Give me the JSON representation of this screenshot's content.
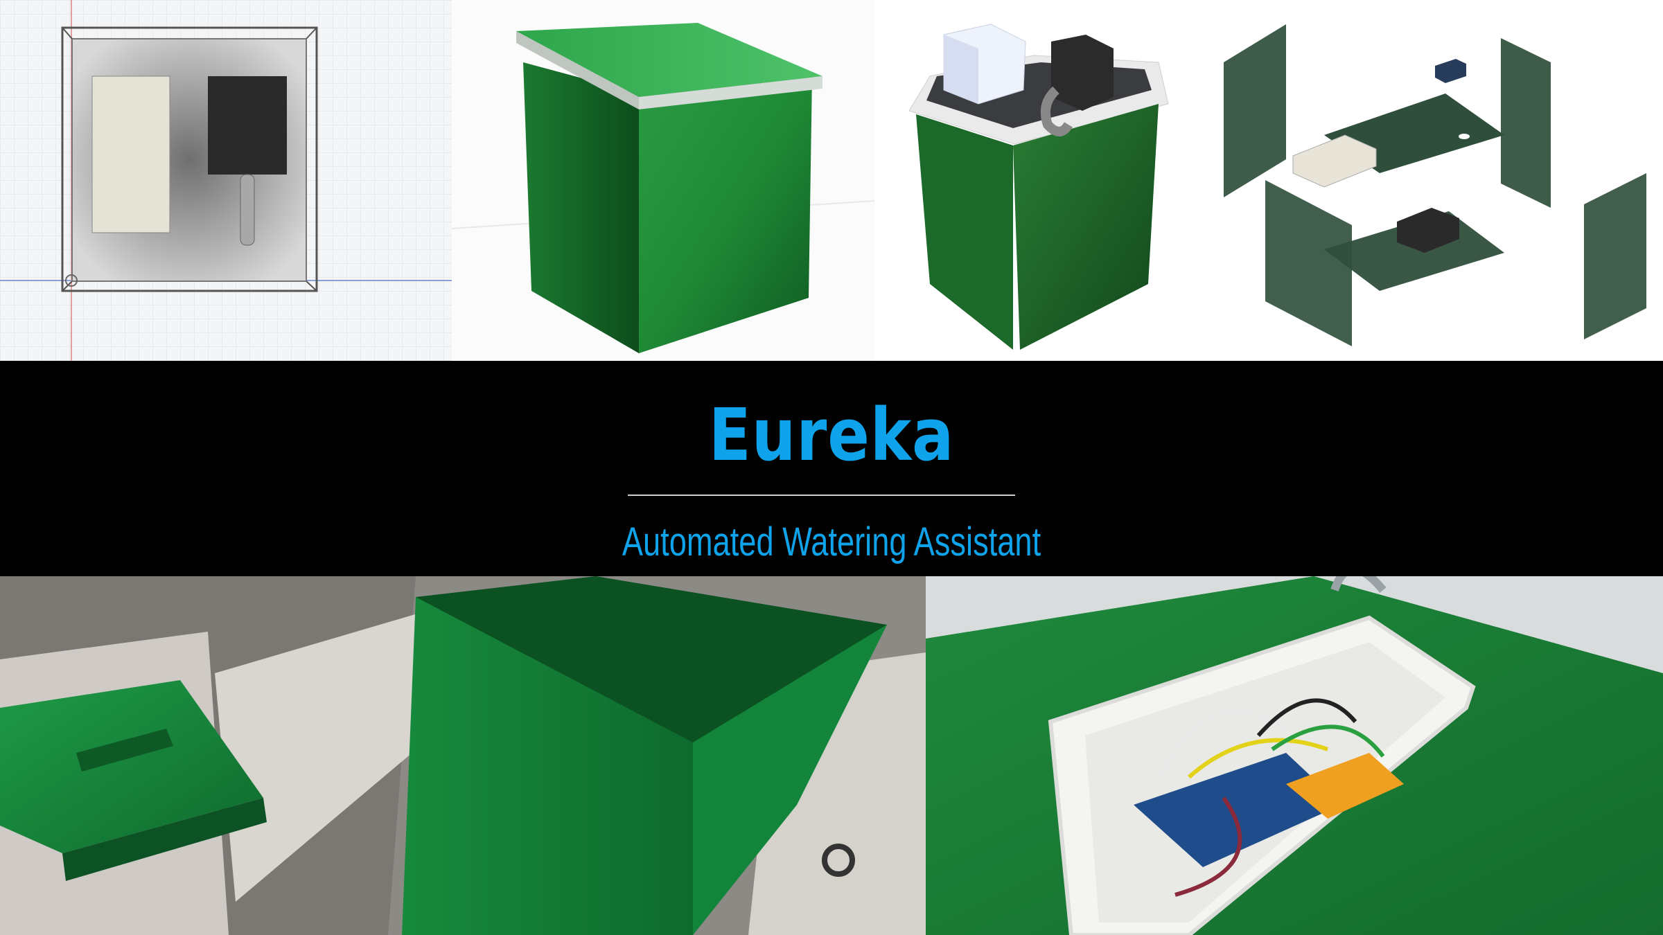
{
  "banner": {
    "title": "Eureka",
    "subtitle": "Automated Watering Assistant"
  },
  "colors": {
    "title": "#0ea3ea",
    "enclosure_green": "#1f8b3a",
    "background": "#000000"
  },
  "panels": [
    {
      "name": "cad-top-view"
    },
    {
      "name": "render-closed-box"
    },
    {
      "name": "render-open-box"
    },
    {
      "name": "exploded-view"
    },
    {
      "name": "photo-painted-box"
    },
    {
      "name": "photo-wiring"
    }
  ]
}
